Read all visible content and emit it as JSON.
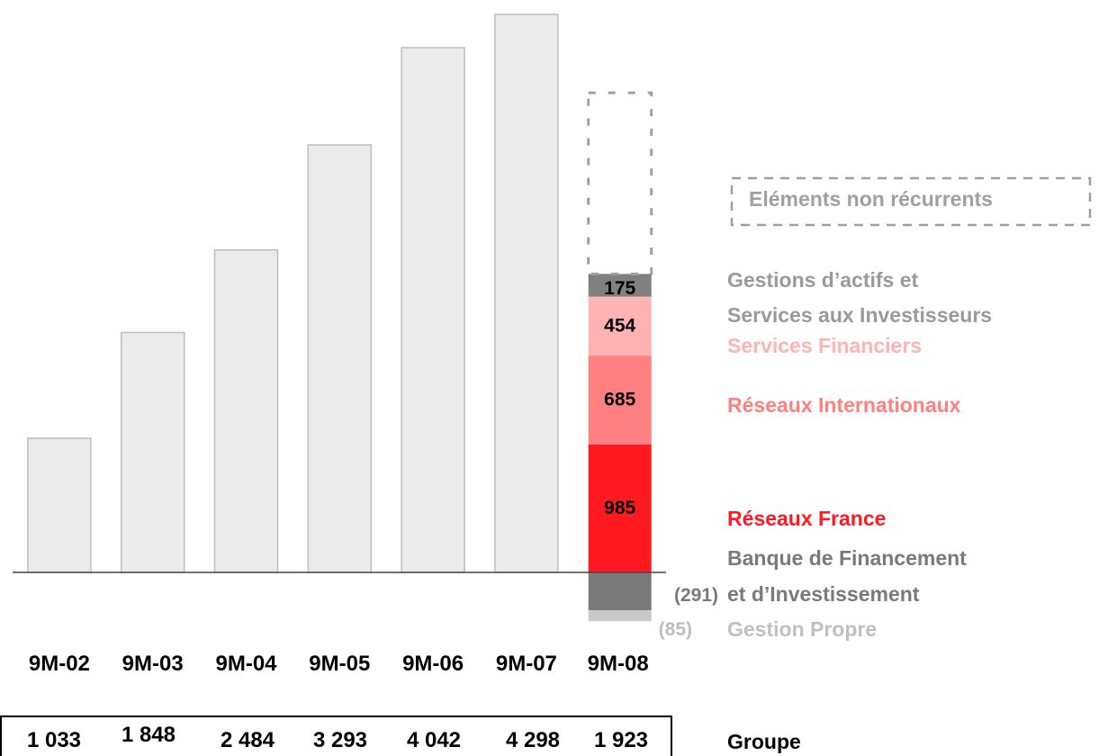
{
  "chart_data": {
    "type": "stacked_bar",
    "categories": [
      "9M-02",
      "9M-03",
      "9M-04",
      "9M-05",
      "9M-06",
      "9M-07",
      "9M-08"
    ],
    "totals": {
      "name": "Groupe",
      "color": "#ebebeb",
      "values": [
        1033,
        1848,
        2484,
        3293,
        4042,
        4298,
        1923
      ],
      "value_labels": [
        "1 033",
        "1 848",
        "2 484",
        "3 293",
        "4 042",
        "4 298",
        "1 923"
      ]
    },
    "series": [
      {
        "name": "Réseaux France",
        "color": "#ff1a22",
        "values": [
          null,
          null,
          null,
          null,
          null,
          null,
          985
        ]
      },
      {
        "name": "Réseaux Internationaux",
        "color": "#ff8080",
        "values": [
          null,
          null,
          null,
          null,
          null,
          null,
          685
        ]
      },
      {
        "name": "Services Financiers",
        "color": "#ffb3b3",
        "values": [
          null,
          null,
          null,
          null,
          null,
          null,
          454
        ]
      },
      {
        "name": "Gestions d’actifs et\nServices aux Investisseurs",
        "color": "#808080",
        "values": [
          null,
          null,
          null,
          null,
          null,
          null,
          175
        ]
      },
      {
        "name": "Eléments non récurrents",
        "color": "#a0a0a0",
        "dashed": true,
        "values": [
          null,
          null,
          null,
          null,
          null,
          null,
          1395
        ]
      },
      {
        "name": "Banque de Financement\net d’Investissement",
        "color": "#7a7a7a",
        "values": [
          null,
          null,
          null,
          null,
          null,
          null,
          -291
        ],
        "value_labels": [
          null,
          null,
          null,
          null,
          null,
          null,
          "(291)"
        ]
      },
      {
        "name": "Gestion Propre",
        "color": "#c8c8c8",
        "values": [
          null,
          null,
          null,
          null,
          null,
          null,
          -85
        ],
        "value_labels": [
          null,
          null,
          null,
          null,
          null,
          null,
          "(85)"
        ]
      }
    ]
  }
}
